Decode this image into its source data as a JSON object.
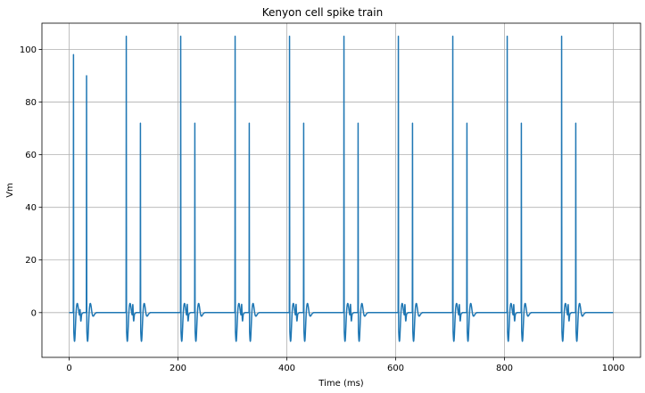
{
  "chart_data": {
    "type": "line",
    "title": "Kenyon cell spike train",
    "xlabel": "Time (ms)",
    "ylabel": "Vm",
    "xlim": [
      -50,
      1050
    ],
    "ylim": [
      -17,
      110
    ],
    "x_ticks": [
      0,
      200,
      400,
      600,
      800,
      1000
    ],
    "y_ticks": [
      0,
      20,
      40,
      60,
      80,
      100
    ],
    "x_tick_labels": [
      "0",
      "200",
      "400",
      "600",
      "800",
      "1000"
    ],
    "y_tick_labels": [
      "0",
      "20",
      "40",
      "60",
      "80",
      "100"
    ],
    "grid": true,
    "line_color": "#1f77b4",
    "series": [
      {
        "x_range": [
          0,
          1000
        ],
        "baseline": 0,
        "trough": -11,
        "burst_pattern": {
          "first_burst": [
            {
              "t": 8,
              "peak": 98
            },
            {
              "t": 20,
              "peak": 2.5
            },
            {
              "t": 32,
              "peak": 90
            }
          ],
          "period": 100,
          "burst_start": 105,
          "burst_count": 9,
          "burst_events": [
            {
              "offset": 0,
              "peak": 105
            },
            {
              "offset": 12,
              "peak": 4.5
            },
            {
              "offset": 26,
              "peak": 72
            }
          ]
        }
      }
    ]
  }
}
